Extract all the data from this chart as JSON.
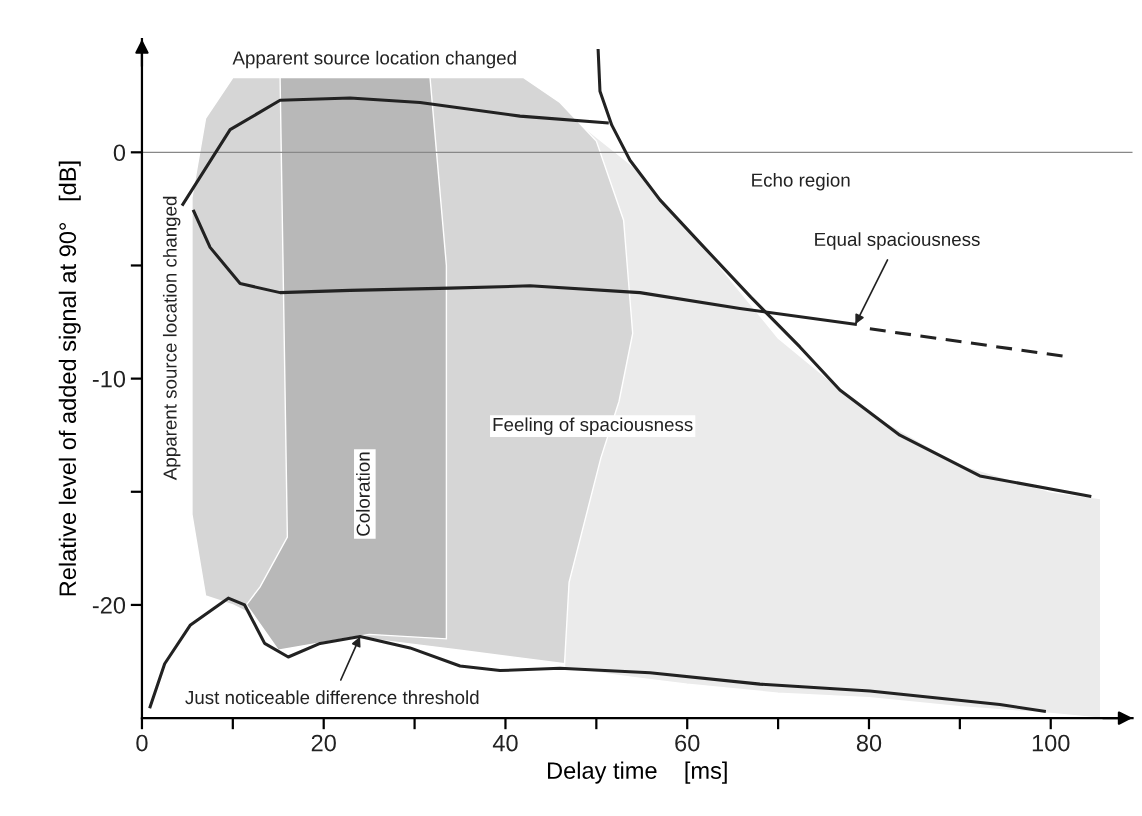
{
  "chart_data": {
    "type": "line",
    "xlabel": "Delay time    [ms]",
    "ylabel": "Relative level of added signal at 90°   [dB]",
    "xlim": [
      0,
      109
    ],
    "ylim": [
      -25,
      5
    ],
    "xticks": [
      0,
      {
        "value": 10,
        "label": null
      },
      20,
      {
        "value": 30,
        "label": null
      },
      40,
      {
        "value": 50,
        "label": null
      },
      60,
      {
        "value": 70,
        "label": null
      },
      80,
      {
        "value": 90,
        "label": null
      },
      100
    ],
    "yticks": [
      0,
      {
        "value": -5,
        "label": null
      },
      -10,
      {
        "value": -15,
        "label": null
      },
      -20
    ],
    "grid": false,
    "legend": false,
    "marker": "none",
    "series": [
      {
        "color": "#222222",
        "x": [
          4.5,
          9.7,
          15.2,
          22.9,
          30.6,
          41.6,
          51.2
        ],
        "values": [
          -2.3,
          1.0,
          2.3,
          2.4,
          2.2,
          1.6,
          1.3
        ]
      },
      {
        "color": "#222222",
        "x": [
          5.7,
          7.5,
          10.8,
          15.2,
          22.9,
          33.9,
          42.7,
          54.8,
          65.8,
          78.5
        ],
        "values": [
          -2.6,
          -4.2,
          -5.8,
          -6.2,
          -6.1,
          -6.0,
          -5.9,
          -6.2,
          -6.9,
          -7.6
        ]
      },
      {
        "color": "#222222",
        "line_style": "dashed",
        "x": [
          80.1,
          101.3
        ],
        "values": [
          -7.8,
          -9.0
        ]
      },
      {
        "color": "#222222",
        "x": [
          50.2,
          50.4,
          51.7,
          53.7,
          57,
          61.4,
          67,
          72.4,
          76.8,
          83.4,
          92.2,
          104.3
        ],
        "values": [
          4.5,
          2.7,
          1.2,
          -0.35,
          -2.1,
          -4.0,
          -6.4,
          -8.6,
          -10.5,
          -12.5,
          -14.3,
          -15.2
        ]
      },
      {
        "color": "#222222",
        "x": [
          0.9,
          2.5,
          5.3,
          9.5,
          11.3,
          13.5,
          16.1,
          19.6,
          24,
          29.5,
          35,
          39.4,
          46,
          55.9,
          68,
          80.1,
          94.4,
          99.3
        ],
        "values": [
          -24.5,
          -22.6,
          -20.9,
          -19.7,
          -20.0,
          -21.7,
          -22.3,
          -21.7,
          -21.4,
          -21.9,
          -22.7,
          -22.9,
          -22.8,
          -23.0,
          -23.5,
          -23.8,
          -24.4,
          -24.7
        ]
      }
    ],
    "ref_lines": [
      {
        "axis": "y",
        "value": 0,
        "color": "#888888"
      }
    ],
    "annotations": [
      "Apparent source location changed",
      "Apparent source location changed",
      "Coloration",
      "Feeling of spaciousness",
      "Echo region",
      {
        "text": "Equal spaciousness",
        "x": 78.5,
        "y": -7.6
      },
      {
        "text": "Just noticeable difference threshold",
        "x": 24,
        "y": -21.4
      }
    ]
  }
}
